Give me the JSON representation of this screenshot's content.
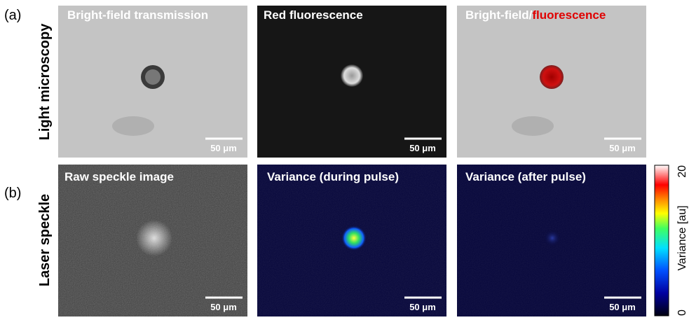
{
  "rows": [
    {
      "tag": "(a)",
      "label": "Light microscopy",
      "panels": [
        {
          "title": "Bright-field transmission",
          "scale_bar": "50 μm"
        },
        {
          "title": "Red fluorescence",
          "scale_bar": "50 μm"
        },
        {
          "title_parts": [
            "Bright-field/",
            "fluorescence"
          ],
          "scale_bar": "50 μm"
        }
      ]
    },
    {
      "tag": "(b)",
      "label": "Laser speckle",
      "panels": [
        {
          "title": "Raw speckle image",
          "scale_bar": "50 μm"
        },
        {
          "title": "Variance (during pulse)",
          "scale_bar": "50 μm"
        },
        {
          "title": "Variance (after pulse)",
          "scale_bar": "50 μm"
        }
      ]
    }
  ],
  "colorbar": {
    "label": "Variance [au]",
    "lim": [
      0,
      20
    ],
    "ticks": [
      0,
      20
    ]
  }
}
